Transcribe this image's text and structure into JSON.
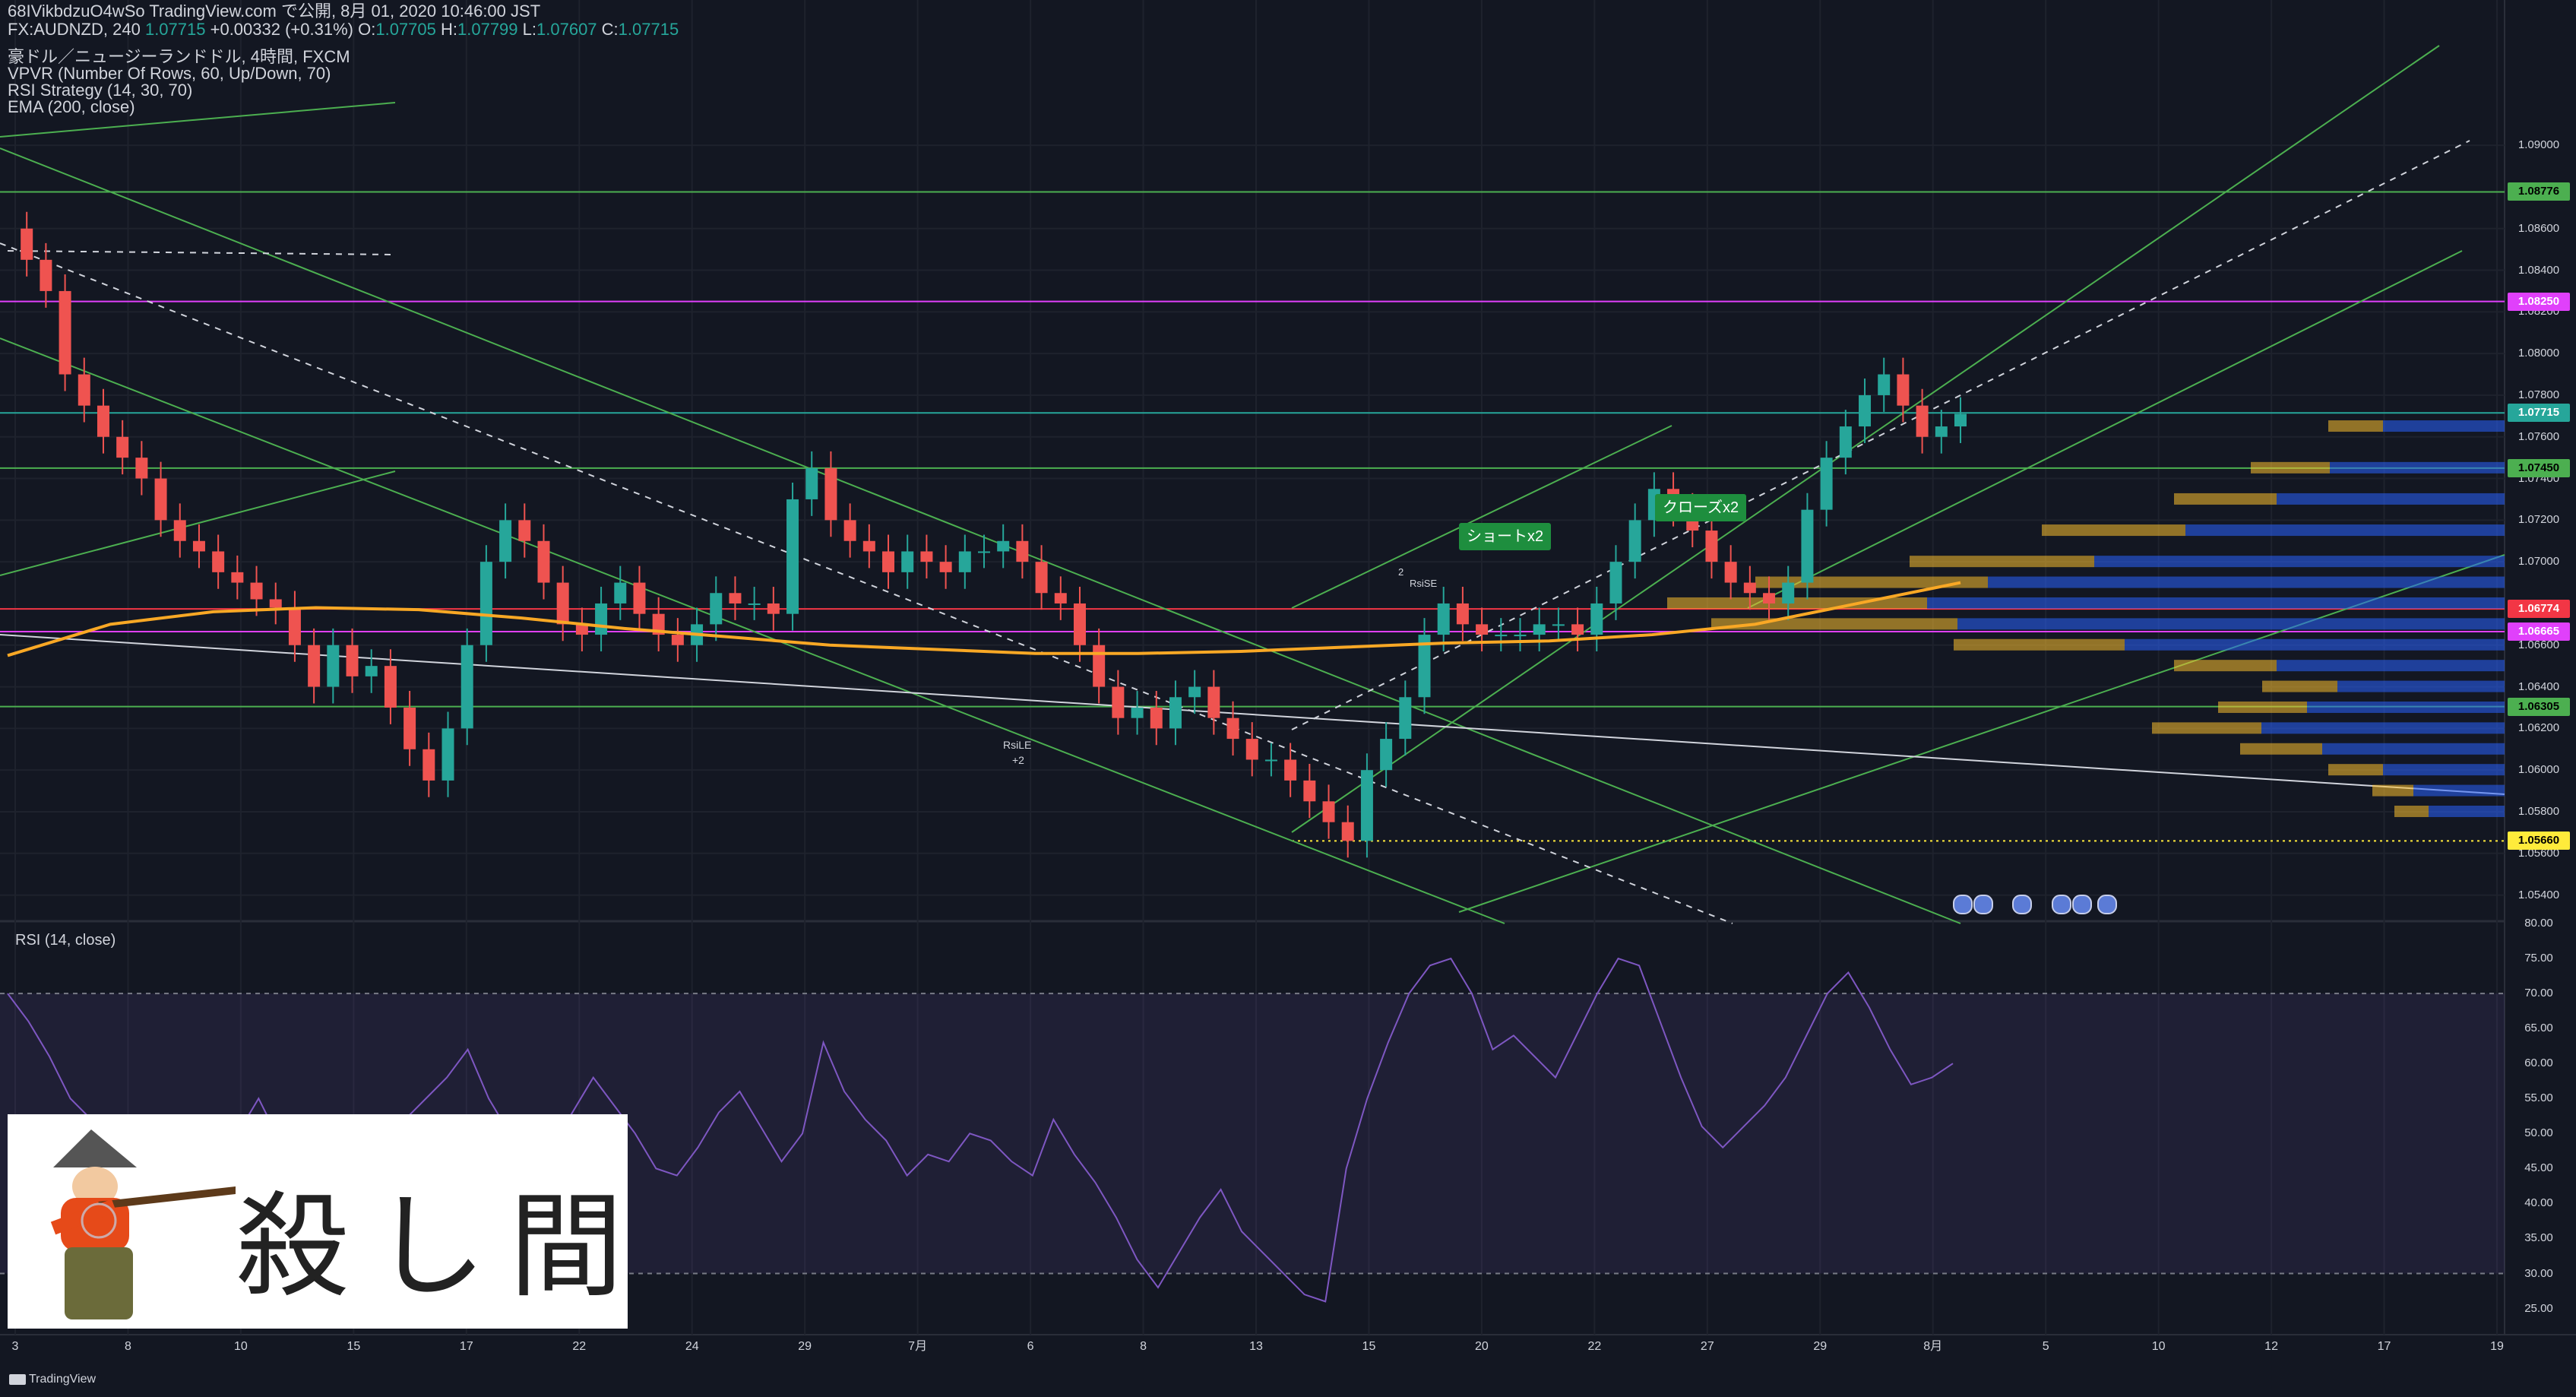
{
  "header": {
    "publish_line": "68IVikbdzuO4wSo TradingView.com で公開, 8月 01, 2020 10:46:00 JST",
    "symbol": "FX:AUDNZD, 240",
    "last": "1.07715",
    "change": "+0.00332 (+0.31%)",
    "open_label": "O:",
    "open": "1.07705",
    "high_label": "H:",
    "high": "1.07799",
    "low_label": "L:",
    "low": "1.07607",
    "close_label": "C:",
    "close": "1.07715"
  },
  "indicators": {
    "title": "豪ドル／ニュージーランドドル, 4時間, FXCM",
    "vpvr": "VPVR (Number Of Rows, 60, Up/Down, 70)",
    "rsi_strategy": "RSI Strategy (14, 30, 70)",
    "ema": "EMA (200, close)"
  },
  "rsi_title": "RSI (14, close)",
  "price_axis": [
    "1.09000",
    "1.08600",
    "1.08400",
    "1.08200",
    "1.08000",
    "1.07800",
    "1.07600",
    "1.07400",
    "1.07200",
    "1.07000",
    "1.06600",
    "1.06400",
    "1.06200",
    "1.06000",
    "1.05800",
    "1.05600",
    "1.05400"
  ],
  "price_tags": [
    {
      "text": "1.08776",
      "bg": "#4caf50",
      "fg": "#000000"
    },
    {
      "text": "1.08250",
      "bg": "#e040fb",
      "fg": "#ffffff"
    },
    {
      "text": "1.07715",
      "bg": "#26a69a",
      "fg": "#ffffff"
    },
    {
      "text": "1.07450",
      "bg": "#4caf50",
      "fg": "#000000"
    },
    {
      "text": "1.06774",
      "bg": "#f23645",
      "fg": "#ffffff"
    },
    {
      "text": "1.06665",
      "bg": "#e040fb",
      "fg": "#ffffff"
    },
    {
      "text": "1.06305",
      "bg": "#4caf50",
      "fg": "#000000"
    },
    {
      "text": "1.05660",
      "bg": "#ffeb3b",
      "fg": "#000000"
    }
  ],
  "rsi_axis": [
    "80.00",
    "75.00",
    "70.00",
    "65.00",
    "60.00",
    "55.00",
    "50.00",
    "45.00",
    "40.00",
    "35.00",
    "30.00",
    "25.00"
  ],
  "date_axis": [
    "3",
    "8",
    "10",
    "15",
    "17",
    "22",
    "24",
    "29",
    "7月",
    "6",
    "8",
    "13",
    "15",
    "20",
    "22",
    "27",
    "29",
    "8月",
    "5",
    "10",
    "12",
    "17",
    "19"
  ],
  "annotations": {
    "short": "ショートx2",
    "close": "クローズx2",
    "rsile": "RsiLE",
    "rsile_qty": "+2",
    "rsise": "RsiSE",
    "rsise_qty": "2"
  },
  "logo": {
    "text": "殺し間"
  },
  "brand": "TradingView",
  "colors": {
    "up": "#26a69a",
    "down": "#ef5350",
    "ema": "#f9a825",
    "rsi": "#7e57c2",
    "bg": "#131722"
  },
  "chart_data": [
    {
      "type": "candlestick",
      "symbol": "FX:AUDNZD",
      "timeframe": "240",
      "ylim": [
        1.053,
        1.0915
      ],
      "x_tick_labels": [
        "3",
        "8",
        "10",
        "15",
        "17",
        "22",
        "24",
        "29",
        "7月",
        "6",
        "8",
        "13",
        "15",
        "20",
        "22",
        "27",
        "29",
        "8月",
        "5",
        "10",
        "12",
        "17",
        "19"
      ],
      "key_levels": [
        1.08776,
        1.0825,
        1.07715,
        1.0745,
        1.06774,
        1.06665,
        1.06305,
        1.0566
      ],
      "close_path": [
        1.086,
        1.0845,
        1.083,
        1.079,
        1.0775,
        1.076,
        1.075,
        1.074,
        1.072,
        1.071,
        1.0705,
        1.0695,
        1.069,
        1.0682,
        1.0678,
        1.066,
        1.064,
        1.066,
        1.0645,
        1.065,
        1.063,
        1.061,
        1.0595,
        1.062,
        1.066,
        1.07,
        1.072,
        1.071,
        1.069,
        1.067,
        1.0665,
        1.068,
        1.069,
        1.0675,
        1.0665,
        1.066,
        1.067,
        1.0685,
        1.068,
        1.068,
        1.0675,
        1.073,
        1.0745,
        1.072,
        1.071,
        1.0705,
        1.0695,
        1.0705,
        1.07,
        1.0695,
        1.0705,
        1.0705,
        1.071,
        1.07,
        1.0685,
        1.068,
        1.066,
        1.064,
        1.0625,
        1.063,
        1.062,
        1.0635,
        1.064,
        1.0625,
        1.0615,
        1.0605,
        1.0605,
        1.0595,
        1.0585,
        1.0575,
        1.0566,
        1.06,
        1.0615,
        1.0635,
        1.0665,
        1.068,
        1.067,
        1.0665,
        1.0665,
        1.0665,
        1.067,
        1.067,
        1.0665,
        1.068,
        1.07,
        1.072,
        1.0735,
        1.0725,
        1.0715,
        1.07,
        1.069,
        1.0685,
        1.068,
        1.069,
        1.0725,
        1.075,
        1.0765,
        1.078,
        1.079,
        1.0775,
        1.076,
        1.0765,
        1.0771
      ],
      "ema_200": [
        1.0655,
        1.067,
        1.0676,
        1.0678,
        1.0677,
        1.0673,
        1.0668,
        1.0664,
        1.066,
        1.0658,
        1.0656,
        1.0656,
        1.0657,
        1.0659,
        1.0661,
        1.0662,
        1.0665,
        1.067,
        1.068,
        1.069
      ]
    },
    {
      "type": "line",
      "title": "RSI (14, close)",
      "ylim": [
        23,
        80
      ],
      "bands": [
        30,
        70
      ],
      "values": [
        70,
        66,
        61,
        55,
        52,
        50,
        47,
        44,
        41,
        40,
        45,
        50,
        55,
        49,
        46,
        43,
        42,
        47,
        50,
        52,
        55,
        58,
        62,
        55,
        50,
        46,
        48,
        53,
        58,
        54,
        50,
        45,
        44,
        48,
        53,
        56,
        51,
        46,
        50,
        63,
        56,
        52,
        49,
        44,
        47,
        46,
        50,
        49,
        46,
        44,
        52,
        47,
        43,
        38,
        32,
        28,
        33,
        38,
        42,
        36,
        33,
        30,
        27,
        26,
        45,
        55,
        63,
        70,
        74,
        75,
        70,
        62,
        64,
        61,
        58,
        64,
        70,
        75,
        74,
        66,
        58,
        51,
        48,
        51,
        54,
        58,
        64,
        70,
        73,
        68,
        62,
        57,
        58,
        60
      ]
    }
  ]
}
